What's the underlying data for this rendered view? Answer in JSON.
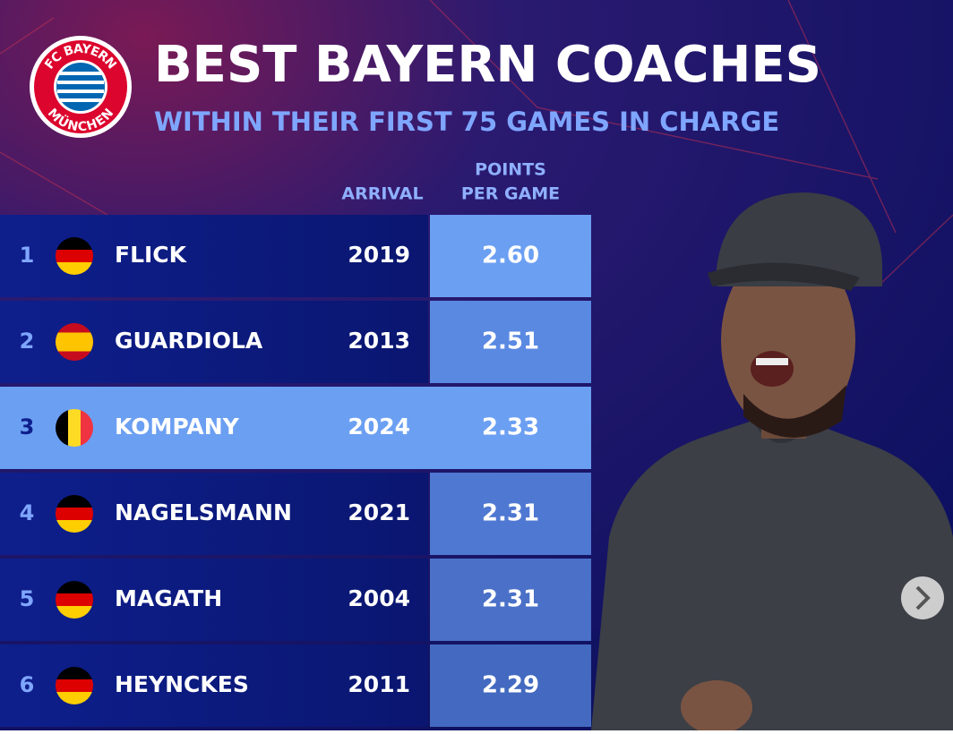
{
  "header": {
    "title": "BEST BAYERN COACHES",
    "subtitle": "WITHIN THEIR FIRST 75 GAMES IN CHARGE",
    "logo_top": "FC BAYERN",
    "logo_bottom": "MÜNCHEN"
  },
  "table": {
    "columns": [
      "ARRIVAL",
      "POINTS",
      "PER GAME"
    ],
    "rows": [
      [
        "1",
        "FLICK",
        "2019",
        "2.60"
      ],
      [
        "2",
        "GUARDIOLA",
        "2013",
        "2.51"
      ],
      [
        "3",
        "KOMPANY",
        "2024",
        "2.33"
      ],
      [
        "4",
        "NAGELSMANN",
        "2021",
        "2.31"
      ],
      [
        "5",
        "MAGATH",
        "2004",
        "2.31"
      ],
      [
        "6",
        "HEYNCKES",
        "2011",
        "2.29"
      ]
    ]
  }
}
